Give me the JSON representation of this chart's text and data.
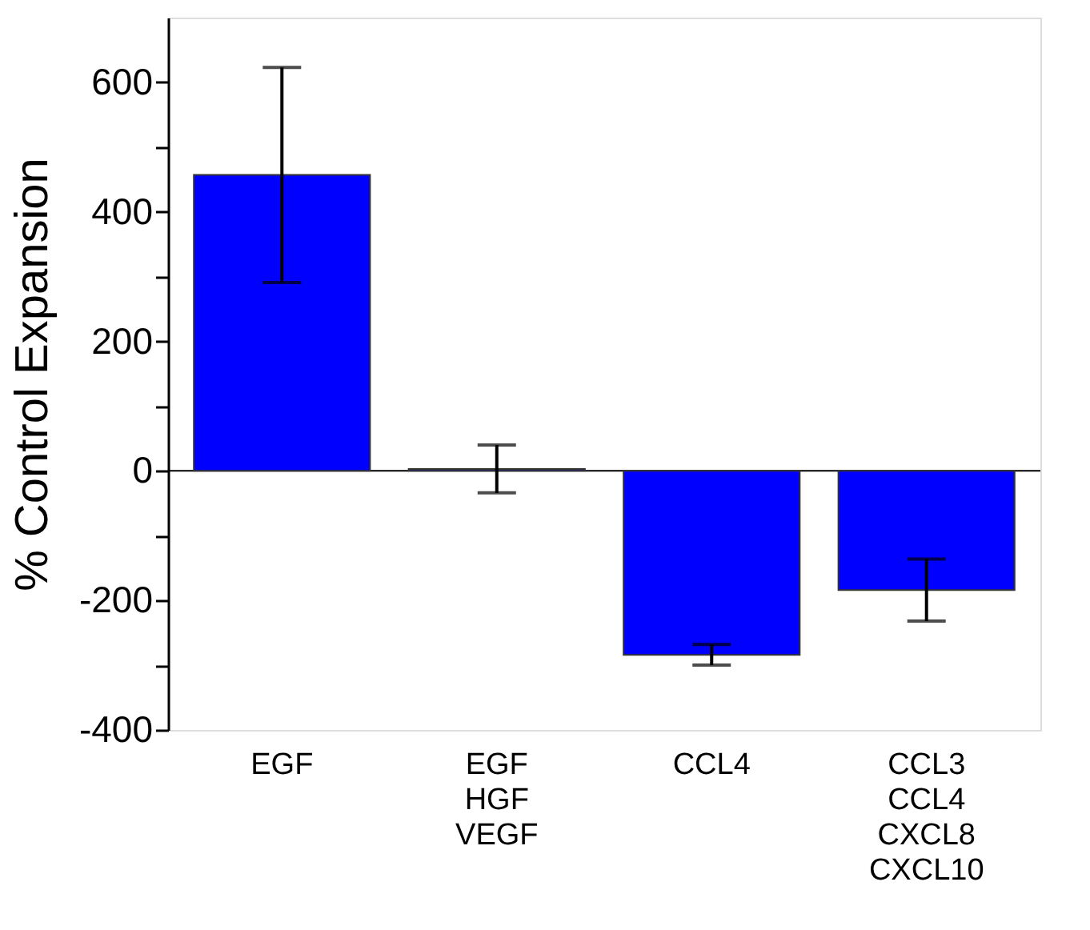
{
  "chart_data": {
    "type": "bar",
    "ylabel": "% Control Expansion",
    "categories": [
      "EGF",
      "EGF\nHGF\nVEGF",
      "CCL4",
      "CCL3\nCCL4\nCXCL8\nCXCL10"
    ],
    "values": [
      457,
      3,
      -284,
      -184
    ],
    "errors": [
      166,
      37,
      16,
      48
    ],
    "color": "#0000ff",
    "ylim": [
      -400,
      700
    ],
    "yticks": [
      -400,
      {
        "value": -300,
        "label": null
      },
      -200,
      {
        "value": -100,
        "label": null
      },
      0,
      {
        "value": 100,
        "label": null
      },
      200,
      {
        "value": 300,
        "label": null
      },
      400,
      {
        "value": 500,
        "label": null
      },
      600
    ],
    "ref_lines": [
      {
        "axis": "y",
        "value": 0,
        "color": "#000000"
      }
    ],
    "grid": false
  }
}
